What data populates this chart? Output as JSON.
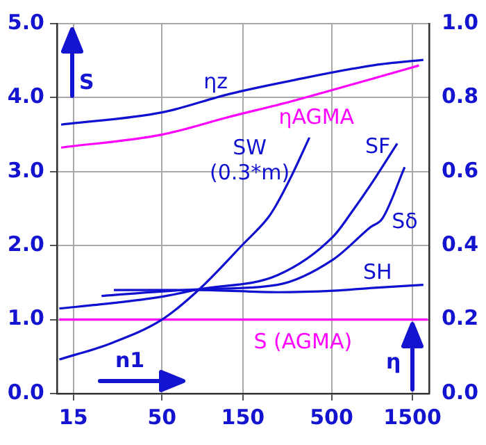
{
  "chart_data": {
    "type": "line",
    "xlabel": "n1",
    "ylabel": "S",
    "y2label": "η",
    "log": "x",
    "grid": true,
    "legend": false,
    "marker": "none",
    "line_style": "solid",
    "xlim": [
      12,
      1880
    ],
    "xticks": [
      15,
      50,
      150,
      500,
      1500
    ],
    "ylim": [
      0,
      5
    ],
    "yticks": [
      {
        "value": 0,
        "label": "0.0"
      },
      {
        "value": 1,
        "label": "1.0"
      },
      {
        "value": 2,
        "label": "2.0"
      },
      {
        "value": 3,
        "label": "3.0"
      },
      {
        "value": 4,
        "label": "4.0"
      },
      {
        "value": 5,
        "label": "5.0"
      }
    ],
    "y2lim": [
      0,
      1
    ],
    "y2ticks": [
      {
        "value": 0,
        "label": "0.0"
      },
      {
        "value": 0.2,
        "label": "0.2"
      },
      {
        "value": 0.4,
        "label": "0.4"
      },
      {
        "value": 0.6,
        "label": "0.6"
      },
      {
        "value": 0.8,
        "label": "0.8"
      },
      {
        "value": 1,
        "label": "1.0"
      }
    ],
    "series": [
      {
        "name": "ηz",
        "color": "#1010d0",
        "axis": "y2",
        "x": [
          12.7,
          50,
          125,
          290,
          900,
          1740
        ],
        "values": [
          0.727,
          0.76,
          0.81,
          0.846,
          0.888,
          0.902
        ]
      },
      {
        "name": "ηAGMA",
        "color": "#ff00ff",
        "axis": "y2",
        "x": [
          12.7,
          50,
          125,
          290,
          900,
          1640
        ],
        "values": [
          0.665,
          0.7,
          0.748,
          0.79,
          0.853,
          0.887
        ]
      },
      {
        "name": "SW\n(0.3*m)",
        "color": "#1010d0",
        "x": [
          12.4,
          25,
          50,
          83,
          152,
          210,
          236,
          290,
          370
        ],
        "values": [
          0.46,
          0.68,
          1.0,
          1.41,
          2.03,
          2.37,
          2.55,
          2.94,
          3.46
        ]
      },
      {
        "name": "SF",
        "color": "#1010d0",
        "x": [
          12.4,
          25,
          50,
          83,
          240,
          510,
          680,
          850,
          1220
        ],
        "values": [
          1.15,
          1.22,
          1.31,
          1.41,
          1.6,
          2.12,
          2.5,
          2.82,
          3.38
        ]
      },
      {
        "name": "Sδ",
        "color": "#1010d0",
        "x": [
          22,
          83,
          240,
          510,
          850,
          1000,
          1350
        ],
        "values": [
          1.32,
          1.41,
          1.47,
          1.81,
          2.25,
          2.37,
          3.06
        ]
      },
      {
        "name": "SH",
        "color": "#1010d0",
        "x": [
          26,
          83,
          240,
          510,
          900,
          1740
        ],
        "values": [
          1.4,
          1.4,
          1.37,
          1.39,
          1.43,
          1.47
        ]
      },
      {
        "name": "S (AGMA)",
        "color": "#ff00ff",
        "x": [
          12.4,
          1850
        ],
        "values": [
          1.0,
          1.0
        ]
      }
    ]
  }
}
